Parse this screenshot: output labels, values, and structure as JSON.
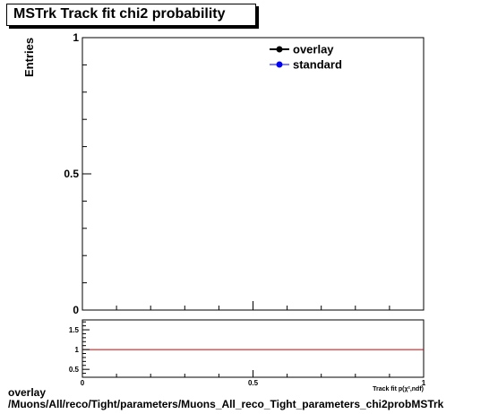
{
  "title": "MSTrk Track fit chi2 probability",
  "footer": {
    "line1": "overlay",
    "line2": "/Muons/All/reco/Tight/parameters/Muons_All_reco_Tight_parameters_chi2probMSTrk"
  },
  "colors": {
    "overlay": "#000000",
    "standard": "#0000ff",
    "ratio_line": "#cc0000"
  },
  "chart_data": [
    {
      "type": "line",
      "ylabel": "Entries",
      "xlim": [
        0,
        1
      ],
      "ylim": [
        0,
        1
      ],
      "yticks": [
        "0",
        "0.5",
        "1"
      ],
      "legend_placement": "top-right",
      "series": [
        {
          "name": "overlay",
          "values": []
        },
        {
          "name": "standard",
          "values": []
        }
      ]
    },
    {
      "type": "line",
      "xlabel": "Track fit p(χ²,ndf)",
      "xlim": [
        0,
        1
      ],
      "ylim": [
        0.3,
        1.75
      ],
      "xticks": [
        "0",
        "0.5",
        "1"
      ],
      "yticks": [
        "0.5",
        "1",
        "1.5"
      ],
      "reference_line": 1
    }
  ]
}
